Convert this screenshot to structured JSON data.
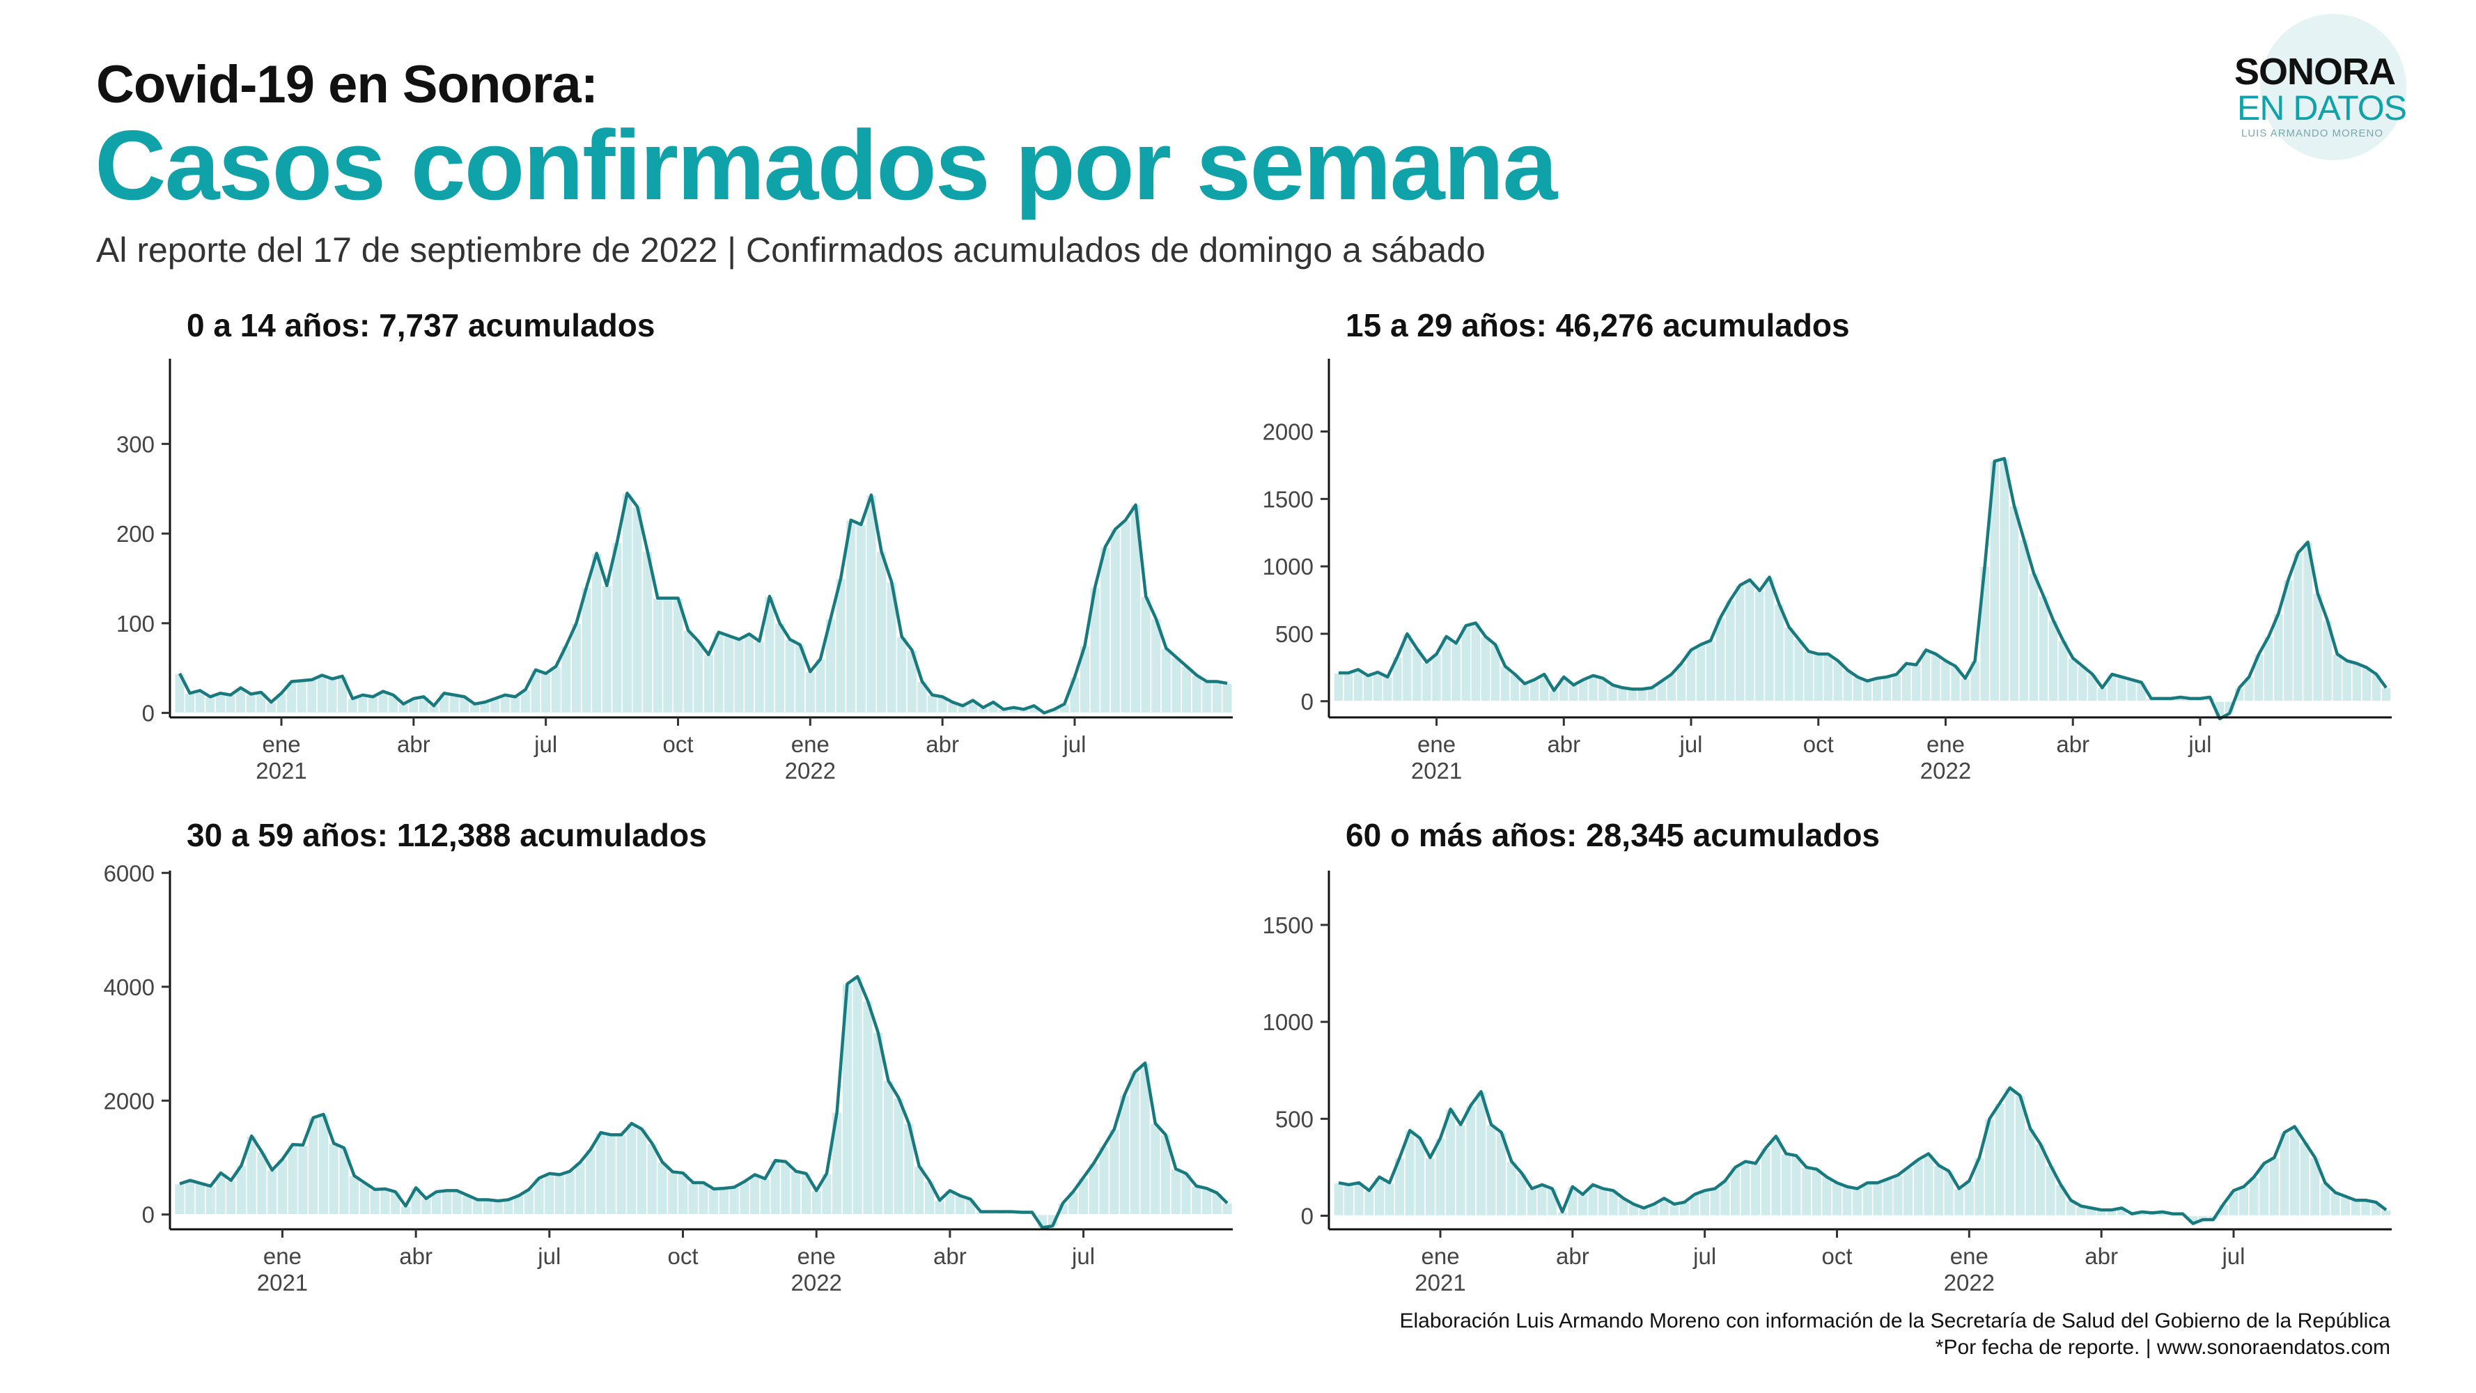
{
  "header": {
    "supertitle": "Covid-19  en Sonora:",
    "title": "Casos confirmados por semana",
    "subtitle": "Al reporte del 17 de septiembre de 2022 | Confirmados acumulados de domingo a sábado"
  },
  "logo": {
    "line1": "SONORA",
    "line2": "EN DATOS",
    "line3": "LUIS ARMANDO MORENO"
  },
  "caption": {
    "line1": "Elaboración Luis Armando Moreno con información de la Secretaría de Salud del Gobierno de la República",
    "line2": "*Por fecha de reporte. | www.sonoraendatos.com"
  },
  "colors": {
    "accent": "#0fa2a8",
    "line": "#187a7e",
    "fill": "#cfeaeb",
    "bar_edge": "#ffffff"
  },
  "chart_data": [
    {
      "type": "area",
      "title": "0 a 14 años: 7,737 acumulados",
      "xlabel": "",
      "ylabel": "",
      "ylim": [
        -5,
        395
      ],
      "yticks": [
        0,
        100,
        200,
        300
      ],
      "xticks": [
        {
          "label": "ene",
          "sub": "2021",
          "week": 10
        },
        {
          "label": "abr",
          "sub": "",
          "week": 23
        },
        {
          "label": "jul",
          "sub": "",
          "week": 36
        },
        {
          "label": "oct",
          "sub": "",
          "week": 49
        },
        {
          "label": "ene",
          "sub": "2022",
          "week": 62
        },
        {
          "label": "abr",
          "sub": "",
          "week": 75
        },
        {
          "label": "jul",
          "sub": "",
          "week": 88
        }
      ],
      "grid": false,
      "values": [
        44,
        22,
        25,
        18,
        22,
        20,
        28,
        21,
        23,
        12,
        22,
        35,
        36,
        37,
        42,
        38,
        41,
        16,
        20,
        18,
        24,
        20,
        10,
        16,
        18,
        8,
        22,
        20,
        18,
        10,
        12,
        16,
        20,
        18,
        26,
        48,
        44,
        52,
        75,
        100,
        140,
        178,
        142,
        190,
        245,
        230,
        180,
        128,
        128,
        128,
        92,
        80,
        65,
        90,
        86,
        82,
        88,
        80,
        130,
        100,
        82,
        76,
        46,
        60,
        105,
        150,
        215,
        210,
        243,
        180,
        146,
        85,
        70,
        35,
        20,
        18,
        12,
        8,
        14,
        6,
        12,
        4,
        6,
        4,
        8,
        0,
        4,
        10,
        40,
        75,
        140,
        185,
        205,
        215,
        232,
        130,
        105,
        72,
        62,
        52,
        42,
        35,
        35,
        33
      ]
    },
    {
      "type": "area",
      "title": "15 a 29 años: 46,276 acumulados",
      "xlabel": "",
      "ylabel": "",
      "ylim": [
        -120,
        2540
      ],
      "yticks": [
        0,
        500,
        1000,
        1500,
        2000
      ],
      "xticks": [
        {
          "label": "ene",
          "sub": "2021",
          "week": 10
        },
        {
          "label": "abr",
          "sub": "",
          "week": 23
        },
        {
          "label": "jul",
          "sub": "",
          "week": 36
        },
        {
          "label": "oct",
          "sub": "",
          "week": 49
        },
        {
          "label": "ene",
          "sub": "2022",
          "week": 62
        },
        {
          "label": "abr",
          "sub": "",
          "week": 75
        },
        {
          "label": "jul",
          "sub": "",
          "week": 88
        }
      ],
      "grid": false,
      "values": [
        210,
        210,
        235,
        190,
        215,
        180,
        330,
        500,
        390,
        290,
        350,
        480,
        430,
        560,
        580,
        480,
        420,
        260,
        200,
        130,
        160,
        200,
        80,
        180,
        120,
        160,
        190,
        170,
        120,
        100,
        90,
        90,
        100,
        150,
        200,
        280,
        380,
        420,
        450,
        620,
        750,
        860,
        900,
        820,
        920,
        720,
        550,
        460,
        370,
        350,
        350,
        300,
        230,
        180,
        150,
        170,
        180,
        200,
        280,
        270,
        380,
        350,
        300,
        260,
        170,
        300,
        1000,
        1780,
        1800,
        1450,
        1200,
        950,
        780,
        600,
        450,
        320,
        260,
        200,
        100,
        200,
        180,
        160,
        140,
        20,
        20,
        20,
        30,
        20,
        20,
        30,
        -130,
        -90,
        100,
        180,
        350,
        480,
        650,
        900,
        1100,
        1180,
        800,
        600,
        350,
        300,
        280,
        250,
        200,
        100
      ]
    },
    {
      "type": "area",
      "title": "30 a 59 años: 112,388 acumulados",
      "xlabel": "",
      "ylabel": "",
      "ylim": [
        -260,
        6040
      ],
      "yticks": [
        0,
        2000,
        4000,
        6000
      ],
      "xticks": [
        {
          "label": "ene",
          "sub": "2021",
          "week": 10
        },
        {
          "label": "abr",
          "sub": "",
          "week": 23
        },
        {
          "label": "jul",
          "sub": "",
          "week": 36
        },
        {
          "label": "oct",
          "sub": "",
          "week": 49
        },
        {
          "label": "ene",
          "sub": "2022",
          "week": 62
        },
        {
          "label": "abr",
          "sub": "",
          "week": 75
        },
        {
          "label": "jul",
          "sub": "",
          "week": 88
        }
      ],
      "grid": false,
      "values": [
        540,
        600,
        550,
        500,
        730,
        600,
        860,
        1380,
        1100,
        780,
        970,
        1230,
        1220,
        1700,
        1760,
        1250,
        1170,
        680,
        560,
        440,
        450,
        400,
        150,
        470,
        280,
        400,
        420,
        420,
        340,
        260,
        260,
        240,
        260,
        330,
        440,
        640,
        720,
        700,
        760,
        920,
        1140,
        1440,
        1400,
        1400,
        1600,
        1500,
        1250,
        920,
        750,
        730,
        560,
        560,
        450,
        460,
        480,
        580,
        700,
        630,
        950,
        930,
        760,
        720,
        420,
        720,
        1800,
        4050,
        4180,
        3750,
        3200,
        2350,
        2050,
        1600,
        850,
        590,
        250,
        420,
        330,
        270,
        50,
        50,
        50,
        50,
        40,
        40,
        -230,
        -200,
        200,
        400,
        650,
        900,
        1200,
        1500,
        2100,
        2500,
        2660,
        1600,
        1400,
        800,
        720,
        500,
        460,
        380,
        200
      ]
    },
    {
      "type": "area",
      "title": "60 o más años: 28,345 acumulados",
      "xlabel": "",
      "ylabel": "",
      "ylim": [
        -70,
        1780
      ],
      "yticks": [
        0,
        500,
        1000,
        1500
      ],
      "xticks": [
        {
          "label": "ene",
          "sub": "2021",
          "week": 10
        },
        {
          "label": "abr",
          "sub": "",
          "week": 23
        },
        {
          "label": "jul",
          "sub": "",
          "week": 36
        },
        {
          "label": "oct",
          "sub": "",
          "week": 49
        },
        {
          "label": "ene",
          "sub": "2022",
          "week": 62
        },
        {
          "label": "abr",
          "sub": "",
          "week": 75
        },
        {
          "label": "jul",
          "sub": "",
          "week": 88
        }
      ],
      "grid": false,
      "values": [
        170,
        160,
        170,
        130,
        200,
        170,
        300,
        440,
        400,
        300,
        400,
        550,
        470,
        570,
        640,
        470,
        430,
        280,
        220,
        140,
        160,
        140,
        20,
        150,
        110,
        160,
        140,
        130,
        90,
        60,
        40,
        60,
        90,
        60,
        70,
        110,
        130,
        140,
        180,
        250,
        280,
        270,
        350,
        410,
        320,
        310,
        250,
        240,
        200,
        170,
        150,
        140,
        170,
        170,
        190,
        210,
        250,
        290,
        320,
        260,
        230,
        140,
        180,
        300,
        500,
        580,
        660,
        620,
        450,
        370,
        260,
        160,
        80,
        50,
        40,
        30,
        30,
        40,
        10,
        20,
        15,
        20,
        10,
        10,
        -40,
        -20,
        -20,
        60,
        130,
        150,
        200,
        270,
        300,
        430,
        460,
        380,
        300,
        170,
        120,
        100,
        80,
        80,
        70,
        30
      ]
    }
  ]
}
